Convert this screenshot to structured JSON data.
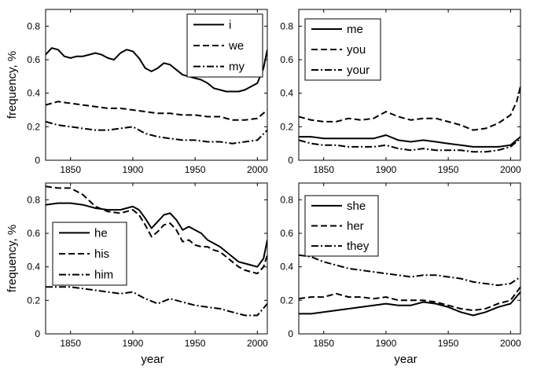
{
  "chart_data": [
    {
      "type": "line",
      "ylabel": "frequency, %",
      "xlabel": "",
      "xlim": [
        1830,
        2008
      ],
      "ylim": [
        0,
        0.9
      ],
      "xticks": [
        1850,
        1900,
        1950,
        2000
      ],
      "yticks": [
        0,
        0.2,
        0.4,
        0.6,
        0.8
      ],
      "legend_position": "top-right",
      "series": [
        {
          "name": "i",
          "style": "solid",
          "x": [
            1830,
            1835,
            1840,
            1845,
            1850,
            1855,
            1860,
            1865,
            1870,
            1875,
            1880,
            1885,
            1890,
            1895,
            1900,
            1905,
            1910,
            1915,
            1920,
            1925,
            1930,
            1935,
            1940,
            1945,
            1950,
            1955,
            1960,
            1965,
            1970,
            1975,
            1980,
            1985,
            1990,
            1995,
            2000,
            2005,
            2008
          ],
          "y": [
            0.63,
            0.67,
            0.66,
            0.62,
            0.61,
            0.62,
            0.62,
            0.63,
            0.64,
            0.63,
            0.61,
            0.6,
            0.64,
            0.66,
            0.65,
            0.61,
            0.55,
            0.53,
            0.55,
            0.58,
            0.57,
            0.54,
            0.51,
            0.5,
            0.49,
            0.48,
            0.46,
            0.43,
            0.42,
            0.41,
            0.41,
            0.41,
            0.42,
            0.44,
            0.46,
            0.55,
            0.66
          ]
        },
        {
          "name": "we",
          "style": "dashed",
          "x": [
            1830,
            1840,
            1850,
            1860,
            1870,
            1880,
            1890,
            1900,
            1910,
            1920,
            1930,
            1940,
            1950,
            1960,
            1970,
            1980,
            1990,
            2000,
            2008
          ],
          "y": [
            0.33,
            0.35,
            0.34,
            0.33,
            0.32,
            0.31,
            0.31,
            0.3,
            0.29,
            0.28,
            0.28,
            0.27,
            0.27,
            0.26,
            0.26,
            0.24,
            0.24,
            0.25,
            0.3
          ]
        },
        {
          "name": "my",
          "style": "dashdot",
          "x": [
            1830,
            1840,
            1850,
            1860,
            1870,
            1880,
            1890,
            1900,
            1910,
            1920,
            1930,
            1940,
            1950,
            1960,
            1970,
            1980,
            1990,
            2000,
            2008
          ],
          "y": [
            0.23,
            0.21,
            0.2,
            0.19,
            0.18,
            0.18,
            0.19,
            0.2,
            0.16,
            0.14,
            0.13,
            0.12,
            0.12,
            0.11,
            0.11,
            0.1,
            0.11,
            0.12,
            0.18
          ]
        }
      ]
    },
    {
      "type": "line",
      "ylabel": "",
      "xlabel": "",
      "xlim": [
        1830,
        2008
      ],
      "ylim": [
        0,
        0.9
      ],
      "xticks": [
        1850,
        1900,
        1950,
        2000
      ],
      "yticks": [
        0,
        0.2,
        0.4,
        0.6,
        0.8
      ],
      "legend_position": "top-left",
      "series": [
        {
          "name": "me",
          "style": "solid",
          "x": [
            1830,
            1840,
            1850,
            1860,
            1870,
            1880,
            1890,
            1900,
            1910,
            1920,
            1930,
            1940,
            1950,
            1960,
            1970,
            1980,
            1990,
            2000,
            2008
          ],
          "y": [
            0.14,
            0.14,
            0.13,
            0.13,
            0.13,
            0.13,
            0.13,
            0.15,
            0.12,
            0.11,
            0.12,
            0.11,
            0.1,
            0.09,
            0.08,
            0.08,
            0.08,
            0.09,
            0.14
          ]
        },
        {
          "name": "you",
          "style": "dashed",
          "x": [
            1830,
            1840,
            1850,
            1860,
            1870,
            1880,
            1890,
            1900,
            1910,
            1920,
            1930,
            1940,
            1950,
            1960,
            1970,
            1980,
            1990,
            2000,
            2005,
            2008
          ],
          "y": [
            0.26,
            0.24,
            0.23,
            0.23,
            0.25,
            0.24,
            0.25,
            0.29,
            0.26,
            0.24,
            0.25,
            0.25,
            0.23,
            0.21,
            0.18,
            0.19,
            0.22,
            0.27,
            0.35,
            0.44
          ]
        },
        {
          "name": "your",
          "style": "dashdot",
          "x": [
            1830,
            1840,
            1850,
            1860,
            1870,
            1880,
            1890,
            1900,
            1910,
            1920,
            1930,
            1940,
            1950,
            1960,
            1970,
            1980,
            1990,
            2000,
            2008
          ],
          "y": [
            0.12,
            0.1,
            0.09,
            0.09,
            0.08,
            0.08,
            0.08,
            0.09,
            0.07,
            0.06,
            0.07,
            0.06,
            0.06,
            0.06,
            0.05,
            0.05,
            0.06,
            0.08,
            0.13
          ]
        }
      ]
    },
    {
      "type": "line",
      "ylabel": "frequency, %",
      "xlabel": "year",
      "xlim": [
        1830,
        2008
      ],
      "ylim": [
        0,
        0.9
      ],
      "xticks": [
        1850,
        1900,
        1950,
        2000
      ],
      "yticks": [
        0,
        0.2,
        0.4,
        0.6,
        0.8
      ],
      "legend_position": "left",
      "series": [
        {
          "name": "he",
          "style": "solid",
          "x": [
            1830,
            1840,
            1850,
            1860,
            1870,
            1880,
            1890,
            1900,
            1905,
            1910,
            1915,
            1920,
            1925,
            1930,
            1935,
            1940,
            1945,
            1950,
            1955,
            1960,
            1965,
            1970,
            1975,
            1980,
            1985,
            1990,
            1995,
            2000,
            2005,
            2008
          ],
          "y": [
            0.77,
            0.78,
            0.78,
            0.77,
            0.75,
            0.74,
            0.74,
            0.76,
            0.74,
            0.69,
            0.63,
            0.67,
            0.71,
            0.72,
            0.68,
            0.62,
            0.64,
            0.62,
            0.6,
            0.56,
            0.54,
            0.52,
            0.49,
            0.46,
            0.43,
            0.42,
            0.41,
            0.4,
            0.45,
            0.56
          ]
        },
        {
          "name": "his",
          "style": "dashed",
          "x": [
            1830,
            1840,
            1850,
            1860,
            1870,
            1880,
            1890,
            1900,
            1905,
            1910,
            1915,
            1920,
            1925,
            1930,
            1935,
            1940,
            1945,
            1950,
            1955,
            1960,
            1965,
            1970,
            1975,
            1980,
            1985,
            1990,
            1995,
            2000,
            2005,
            2008
          ],
          "y": [
            0.88,
            0.87,
            0.87,
            0.83,
            0.76,
            0.73,
            0.72,
            0.74,
            0.71,
            0.65,
            0.58,
            0.61,
            0.65,
            0.66,
            0.62,
            0.55,
            0.56,
            0.53,
            0.52,
            0.52,
            0.5,
            0.49,
            0.46,
            0.43,
            0.4,
            0.38,
            0.37,
            0.36,
            0.4,
            0.47
          ]
        },
        {
          "name": "him",
          "style": "dashdot",
          "x": [
            1830,
            1840,
            1850,
            1860,
            1870,
            1880,
            1890,
            1900,
            1910,
            1920,
            1930,
            1940,
            1950,
            1960,
            1970,
            1980,
            1990,
            2000,
            2008
          ],
          "y": [
            0.28,
            0.28,
            0.28,
            0.27,
            0.26,
            0.25,
            0.24,
            0.25,
            0.21,
            0.18,
            0.21,
            0.19,
            0.17,
            0.16,
            0.15,
            0.13,
            0.11,
            0.11,
            0.18
          ]
        }
      ]
    },
    {
      "type": "line",
      "ylabel": "",
      "xlabel": "year",
      "xlim": [
        1830,
        2008
      ],
      "ylim": [
        0,
        0.9
      ],
      "xticks": [
        1850,
        1900,
        1950,
        2000
      ],
      "yticks": [
        0,
        0.2,
        0.4,
        0.6,
        0.8
      ],
      "legend_position": "top-left",
      "series": [
        {
          "name": "she",
          "style": "solid",
          "x": [
            1830,
            1840,
            1850,
            1860,
            1870,
            1880,
            1890,
            1900,
            1910,
            1920,
            1930,
            1940,
            1950,
            1960,
            1970,
            1980,
            1990,
            2000,
            2008
          ],
          "y": [
            0.12,
            0.12,
            0.13,
            0.14,
            0.15,
            0.16,
            0.17,
            0.18,
            0.17,
            0.17,
            0.19,
            0.18,
            0.16,
            0.13,
            0.11,
            0.13,
            0.16,
            0.18,
            0.25
          ]
        },
        {
          "name": "her",
          "style": "dashed",
          "x": [
            1830,
            1840,
            1850,
            1860,
            1870,
            1880,
            1890,
            1900,
            1910,
            1920,
            1930,
            1940,
            1950,
            1960,
            1970,
            1980,
            1990,
            2000,
            2008
          ],
          "y": [
            0.21,
            0.22,
            0.22,
            0.24,
            0.22,
            0.22,
            0.21,
            0.22,
            0.2,
            0.2,
            0.2,
            0.19,
            0.17,
            0.15,
            0.14,
            0.15,
            0.18,
            0.2,
            0.28
          ]
        },
        {
          "name": "they",
          "style": "dashdot",
          "x": [
            1830,
            1840,
            1850,
            1860,
            1870,
            1880,
            1890,
            1900,
            1910,
            1920,
            1930,
            1940,
            1950,
            1960,
            1970,
            1980,
            1990,
            2000,
            2008
          ],
          "y": [
            0.47,
            0.46,
            0.43,
            0.41,
            0.39,
            0.38,
            0.37,
            0.36,
            0.35,
            0.34,
            0.35,
            0.35,
            0.34,
            0.33,
            0.31,
            0.3,
            0.29,
            0.3,
            0.34
          ]
        }
      ]
    }
  ]
}
